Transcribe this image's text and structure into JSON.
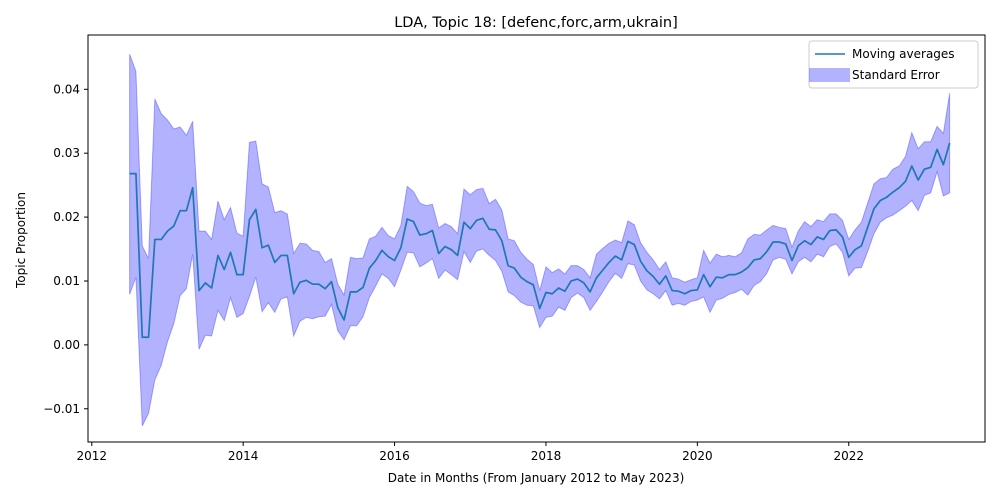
{
  "chart_data": {
    "type": "line",
    "title": "LDA, Topic 18: [defenc,forc,arm,ukrain]",
    "xlabel": "Date in Months (From January 2012 to May 2023)",
    "ylabel": "Topic Proportion",
    "xlim": [
      2011.95,
      2023.8
    ],
    "ylim": [
      -0.0152,
      0.0485
    ],
    "x_ticks": [
      2012,
      2014,
      2016,
      2018,
      2020,
      2022
    ],
    "x_tick_labels": [
      "2012",
      "2014",
      "2016",
      "2018",
      "2020",
      "2022"
    ],
    "y_ticks": [
      -0.01,
      0.0,
      0.01,
      0.02,
      0.03,
      0.04
    ],
    "y_tick_labels": [
      "−0.01",
      "0.00",
      "0.01",
      "0.02",
      "0.03",
      "0.04"
    ],
    "grid": false,
    "legend_position": "top-right",
    "series": [
      {
        "name": "Moving averages",
        "color": "#1f77b4",
        "kind": "line",
        "x": [
          2012.5,
          2012.583,
          2012.667,
          2012.75,
          2012.833,
          2012.917,
          2013.0,
          2013.083,
          2013.167,
          2013.25,
          2013.333,
          2013.417,
          2013.5,
          2013.583,
          2013.667,
          2013.75,
          2013.833,
          2013.917,
          2014.0,
          2014.083,
          2014.167,
          2014.25,
          2014.333,
          2014.417,
          2014.5,
          2014.583,
          2014.667,
          2014.75,
          2014.833,
          2014.917,
          2015.0,
          2015.083,
          2015.167,
          2015.25,
          2015.333,
          2015.417,
          2015.5,
          2015.583,
          2015.667,
          2015.75,
          2015.833,
          2015.917,
          2016.0,
          2016.083,
          2016.167,
          2016.25,
          2016.333,
          2016.417,
          2016.5,
          2016.583,
          2016.667,
          2016.75,
          2016.833,
          2016.917,
          2017.0,
          2017.083,
          2017.167,
          2017.25,
          2017.333,
          2017.417,
          2017.5,
          2017.583,
          2017.667,
          2017.75,
          2017.833,
          2017.917,
          2018.0,
          2018.083,
          2018.167,
          2018.25,
          2018.333,
          2018.417,
          2018.5,
          2018.583,
          2018.667,
          2018.75,
          2018.833,
          2018.917,
          2019.0,
          2019.083,
          2019.167,
          2019.25,
          2019.333,
          2019.417,
          2019.5,
          2019.583,
          2019.667,
          2019.75,
          2019.833,
          2019.917,
          2020.0,
          2020.083,
          2020.167,
          2020.25,
          2020.333,
          2020.417,
          2020.5,
          2020.583,
          2020.667,
          2020.75,
          2020.833,
          2020.917,
          2021.0,
          2021.083,
          2021.167,
          2021.25,
          2021.333,
          2021.417,
          2021.5,
          2021.583,
          2021.667,
          2021.75,
          2021.833,
          2021.917,
          2022.0,
          2022.083,
          2022.167,
          2022.25,
          2022.333,
          2022.417,
          2022.5,
          2022.583,
          2022.667,
          2022.75,
          2022.833,
          2022.917,
          2023.0,
          2023.083,
          2023.167,
          2023.25,
          2023.333
        ],
        "y": [
          0.0268,
          0.0268,
          0.0012,
          0.0012,
          0.0165,
          0.0165,
          0.0178,
          0.0186,
          0.021,
          0.021,
          0.0246,
          0.0085,
          0.0097,
          0.0089,
          0.014,
          0.0118,
          0.0145,
          0.011,
          0.011,
          0.0196,
          0.0212,
          0.0152,
          0.0156,
          0.0129,
          0.014,
          0.014,
          0.008,
          0.0098,
          0.0101,
          0.0095,
          0.0095,
          0.0088,
          0.0099,
          0.0058,
          0.0039,
          0.0083,
          0.0083,
          0.009,
          0.012,
          0.0132,
          0.0148,
          0.0138,
          0.0132,
          0.0152,
          0.0197,
          0.0193,
          0.0172,
          0.0174,
          0.0179,
          0.0143,
          0.0154,
          0.0149,
          0.014,
          0.0192,
          0.0182,
          0.0195,
          0.0198,
          0.0181,
          0.018,
          0.0163,
          0.0124,
          0.012,
          0.0106,
          0.0099,
          0.0094,
          0.0057,
          0.0082,
          0.008,
          0.0089,
          0.0084,
          0.01,
          0.0103,
          0.0097,
          0.0083,
          0.0105,
          0.0117,
          0.0129,
          0.0139,
          0.0133,
          0.0162,
          0.0157,
          0.0131,
          0.0116,
          0.0107,
          0.0095,
          0.0108,
          0.0085,
          0.0084,
          0.008,
          0.0085,
          0.0086,
          0.011,
          0.0091,
          0.0106,
          0.0105,
          0.011,
          0.011,
          0.0114,
          0.0121,
          0.0133,
          0.0135,
          0.0146,
          0.0161,
          0.0161,
          0.0158,
          0.0132,
          0.0155,
          0.0163,
          0.0157,
          0.0169,
          0.0165,
          0.0179,
          0.018,
          0.0169,
          0.0137,
          0.0149,
          0.0155,
          0.0184,
          0.0213,
          0.0226,
          0.0231,
          0.0239,
          0.0246,
          0.0256,
          0.028,
          0.0258,
          0.0275,
          0.0278,
          0.0306,
          0.0282,
          0.0316
        ]
      },
      {
        "name": "Standard Error",
        "color": "#0000ff",
        "kind": "band",
        "x": [
          2012.5,
          2012.583,
          2012.667,
          2012.75,
          2012.833,
          2012.917,
          2013.0,
          2013.083,
          2013.167,
          2013.25,
          2013.333,
          2013.417,
          2013.5,
          2013.583,
          2013.667,
          2013.75,
          2013.833,
          2013.917,
          2014.0,
          2014.083,
          2014.167,
          2014.25,
          2014.333,
          2014.417,
          2014.5,
          2014.583,
          2014.667,
          2014.75,
          2014.833,
          2014.917,
          2015.0,
          2015.083,
          2015.167,
          2015.25,
          2015.333,
          2015.417,
          2015.5,
          2015.583,
          2015.667,
          2015.75,
          2015.833,
          2015.917,
          2016.0,
          2016.083,
          2016.167,
          2016.25,
          2016.333,
          2016.417,
          2016.5,
          2016.583,
          2016.667,
          2016.75,
          2016.833,
          2016.917,
          2017.0,
          2017.083,
          2017.167,
          2017.25,
          2017.333,
          2017.417,
          2017.5,
          2017.583,
          2017.667,
          2017.75,
          2017.833,
          2017.917,
          2018.0,
          2018.083,
          2018.167,
          2018.25,
          2018.333,
          2018.417,
          2018.5,
          2018.583,
          2018.667,
          2018.75,
          2018.833,
          2018.917,
          2019.0,
          2019.083,
          2019.167,
          2019.25,
          2019.333,
          2019.417,
          2019.5,
          2019.583,
          2019.667,
          2019.75,
          2019.833,
          2019.917,
          2020.0,
          2020.083,
          2020.167,
          2020.25,
          2020.333,
          2020.417,
          2020.5,
          2020.583,
          2020.667,
          2020.75,
          2020.833,
          2020.917,
          2021.0,
          2021.083,
          2021.167,
          2021.25,
          2021.333,
          2021.417,
          2021.5,
          2021.583,
          2021.667,
          2021.75,
          2021.833,
          2021.917,
          2022.0,
          2022.083,
          2022.167,
          2022.25,
          2022.333,
          2022.417,
          2022.5,
          2022.583,
          2022.667,
          2022.75,
          2022.833,
          2022.917,
          2023.0,
          2023.083,
          2023.167,
          2023.25,
          2023.333
        ],
        "upper": [
          0.0455,
          0.0428,
          0.0155,
          0.0135,
          0.0385,
          0.0362,
          0.0352,
          0.0338,
          0.0341,
          0.0328,
          0.035,
          0.0178,
          0.0178,
          0.0165,
          0.0225,
          0.0196,
          0.0215,
          0.0175,
          0.017,
          0.0317,
          0.0319,
          0.0252,
          0.0247,
          0.0207,
          0.021,
          0.0205,
          0.0143,
          0.0159,
          0.0158,
          0.0148,
          0.0146,
          0.0129,
          0.0135,
          0.0095,
          0.0078,
          0.0137,
          0.0135,
          0.0136,
          0.0166,
          0.017,
          0.0184,
          0.0171,
          0.0166,
          0.0187,
          0.0248,
          0.024,
          0.0222,
          0.0218,
          0.022,
          0.0183,
          0.019,
          0.0185,
          0.0174,
          0.0244,
          0.0235,
          0.0243,
          0.0245,
          0.0221,
          0.0228,
          0.0211,
          0.0166,
          0.0163,
          0.0145,
          0.0134,
          0.0126,
          0.0085,
          0.0122,
          0.0113,
          0.0119,
          0.0111,
          0.0124,
          0.0124,
          0.0118,
          0.0105,
          0.0142,
          0.0151,
          0.0159,
          0.0164,
          0.016,
          0.0194,
          0.0188,
          0.016,
          0.0145,
          0.0133,
          0.0118,
          0.013,
          0.0105,
          0.0103,
          0.0098,
          0.0102,
          0.0105,
          0.0148,
          0.0128,
          0.0142,
          0.0138,
          0.014,
          0.0138,
          0.0144,
          0.0166,
          0.0173,
          0.0172,
          0.018,
          0.0187,
          0.0184,
          0.0182,
          0.0153,
          0.0178,
          0.0193,
          0.0185,
          0.0196,
          0.0193,
          0.0205,
          0.0205,
          0.0195,
          0.0165,
          0.018,
          0.0192,
          0.0222,
          0.0252,
          0.026,
          0.0262,
          0.0275,
          0.028,
          0.0295,
          0.0332,
          0.0307,
          0.0318,
          0.0318,
          0.0342,
          0.0331,
          0.0394
        ],
        "lower": [
          0.0079,
          0.0106,
          -0.0127,
          -0.0107,
          -0.0055,
          -0.0032,
          0.0005,
          0.0033,
          0.0077,
          0.0088,
          0.0142,
          -0.0007,
          0.0015,
          0.0014,
          0.0054,
          0.0038,
          0.0074,
          0.0043,
          0.0049,
          0.0076,
          0.0106,
          0.0052,
          0.0066,
          0.0051,
          0.0072,
          0.0075,
          0.0014,
          0.0037,
          0.0043,
          0.0041,
          0.0044,
          0.0045,
          0.0063,
          0.0022,
          0.0008,
          0.003,
          0.003,
          0.0044,
          0.0074,
          0.0092,
          0.0111,
          0.0104,
          0.0091,
          0.0117,
          0.0145,
          0.0144,
          0.0122,
          0.0128,
          0.0135,
          0.0104,
          0.0117,
          0.011,
          0.0102,
          0.0146,
          0.0129,
          0.0147,
          0.015,
          0.014,
          0.0132,
          0.0115,
          0.0083,
          0.0077,
          0.0067,
          0.0062,
          0.0061,
          0.0027,
          0.0043,
          0.0045,
          0.0059,
          0.0054,
          0.0074,
          0.0081,
          0.0074,
          0.0054,
          0.0068,
          0.0083,
          0.0099,
          0.0112,
          0.0104,
          0.0127,
          0.0125,
          0.01,
          0.0086,
          0.008,
          0.0072,
          0.0085,
          0.0062,
          0.0065,
          0.0062,
          0.0068,
          0.007,
          0.0075,
          0.0051,
          0.007,
          0.0073,
          0.0079,
          0.0082,
          0.0087,
          0.0078,
          0.0093,
          0.0099,
          0.0112,
          0.0133,
          0.0137,
          0.0134,
          0.0111,
          0.013,
          0.0137,
          0.013,
          0.0142,
          0.0138,
          0.0154,
          0.0158,
          0.0145,
          0.0108,
          0.012,
          0.0121,
          0.0146,
          0.0174,
          0.0192,
          0.0199,
          0.0203,
          0.021,
          0.0217,
          0.0226,
          0.021,
          0.0234,
          0.0238,
          0.0271,
          0.0233,
          0.0238
        ]
      }
    ]
  }
}
